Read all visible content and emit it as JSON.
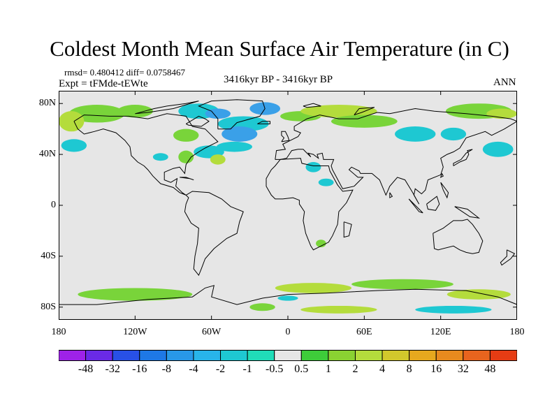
{
  "title": "Coldest Month Mean Surface Air Temperature (in C)",
  "stats": "rmsd= 0.480412 diff= 0.0758467",
  "experiment": "Expt = tFMde-tEWte",
  "period": "3416kyr BP - 3416kyr BP",
  "season": "ANN",
  "map": {
    "projection": "cylindrical-equidistant",
    "lon_range": [
      -180,
      180
    ],
    "lat_range": [
      -90,
      90
    ],
    "land_fill": "#e6e6e6",
    "coast_color": "#000000",
    "lat_ticks": [
      {
        "value": 80,
        "label": "80N"
      },
      {
        "value": 40,
        "label": "40N"
      },
      {
        "value": 0,
        "label": "0"
      },
      {
        "value": -40,
        "label": "40S"
      },
      {
        "value": -80,
        "label": "80S"
      }
    ],
    "lon_ticks": [
      {
        "value": -180,
        "label": "180"
      },
      {
        "value": -120,
        "label": "120W"
      },
      {
        "value": -60,
        "label": "60W"
      },
      {
        "value": 0,
        "label": "0"
      },
      {
        "value": 60,
        "label": "60E"
      },
      {
        "value": 120,
        "label": "120E"
      },
      {
        "value": 180,
        "label": "180"
      }
    ],
    "anomaly_patches": [
      {
        "lon": -150,
        "lat": 72,
        "rx": 22,
        "ry": 7,
        "color": "#79d43a"
      },
      {
        "lon": -170,
        "lat": 66,
        "rx": 10,
        "ry": 8,
        "color": "#b4dc3c"
      },
      {
        "lon": -120,
        "lat": 74,
        "rx": 14,
        "ry": 5,
        "color": "#79d43a"
      },
      {
        "lon": -70,
        "lat": 74,
        "rx": 16,
        "ry": 6,
        "color": "#1ec8d2"
      },
      {
        "lon": -55,
        "lat": 72,
        "rx": 10,
        "ry": 4,
        "color": "#3aa0e8"
      },
      {
        "lon": -35,
        "lat": 64,
        "rx": 20,
        "ry": 6,
        "color": "#1ec8d2"
      },
      {
        "lon": -38,
        "lat": 56,
        "rx": 14,
        "ry": 6,
        "color": "#3aa0e8"
      },
      {
        "lon": -18,
        "lat": 76,
        "rx": 12,
        "ry": 5,
        "color": "#3aa0e8"
      },
      {
        "lon": -42,
        "lat": 46,
        "rx": 14,
        "ry": 4,
        "color": "#1ec8d2"
      },
      {
        "lon": -62,
        "lat": 42,
        "rx": 12,
        "ry": 5,
        "color": "#1ec8d2"
      },
      {
        "lon": -80,
        "lat": 38,
        "rx": 6,
        "ry": 5,
        "color": "#79d43a"
      },
      {
        "lon": -55,
        "lat": 36,
        "rx": 6,
        "ry": 4,
        "color": "#b4dc3c"
      },
      {
        "lon": -100,
        "lat": 38,
        "rx": 6,
        "ry": 3,
        "color": "#1ec8d2"
      },
      {
        "lon": 10,
        "lat": 70,
        "rx": 16,
        "ry": 4,
        "color": "#79d43a"
      },
      {
        "lon": 40,
        "lat": 74,
        "rx": 30,
        "ry": 5,
        "color": "#b4dc3c"
      },
      {
        "lon": 60,
        "lat": 66,
        "rx": 26,
        "ry": 5,
        "color": "#79d43a"
      },
      {
        "lon": 100,
        "lat": 56,
        "rx": 16,
        "ry": 6,
        "color": "#1ec8d2"
      },
      {
        "lon": 130,
        "lat": 56,
        "rx": 10,
        "ry": 5,
        "color": "#1ec8d2"
      },
      {
        "lon": 150,
        "lat": 74,
        "rx": 26,
        "ry": 6,
        "color": "#79d43a"
      },
      {
        "lon": 168,
        "lat": 72,
        "rx": 12,
        "ry": 4,
        "color": "#b4dc3c"
      },
      {
        "lon": 20,
        "lat": 30,
        "rx": 6,
        "ry": 4,
        "color": "#1ec8d2"
      },
      {
        "lon": 30,
        "lat": 18,
        "rx": 6,
        "ry": 3,
        "color": "#1ec8d2"
      },
      {
        "lon": 165,
        "lat": 44,
        "rx": 12,
        "ry": 6,
        "color": "#1ec8d2"
      },
      {
        "lon": -168,
        "lat": 47,
        "rx": 10,
        "ry": 5,
        "color": "#1ec8d2"
      },
      {
        "lon": -80,
        "lat": 55,
        "rx": 10,
        "ry": 5,
        "color": "#79d43a"
      },
      {
        "lon": 26,
        "lat": -30,
        "rx": 4,
        "ry": 3,
        "color": "#79d43a"
      },
      {
        "lon": 90,
        "lat": -62,
        "rx": 40,
        "ry": 4,
        "color": "#79d43a"
      },
      {
        "lon": -120,
        "lat": -70,
        "rx": 45,
        "ry": 5,
        "color": "#79d43a"
      },
      {
        "lon": 20,
        "lat": -65,
        "rx": 30,
        "ry": 4,
        "color": "#b4dc3c"
      },
      {
        "lon": 150,
        "lat": -70,
        "rx": 25,
        "ry": 4,
        "color": "#b4dc3c"
      },
      {
        "lon": -20,
        "lat": -80,
        "rx": 10,
        "ry": 3,
        "color": "#79d43a"
      },
      {
        "lon": 40,
        "lat": -82,
        "rx": 30,
        "ry": 3,
        "color": "#b4dc3c"
      },
      {
        "lon": 0,
        "lat": -73,
        "rx": 8,
        "ry": 2,
        "color": "#1ec8d2"
      },
      {
        "lon": 130,
        "lat": -82,
        "rx": 30,
        "ry": 3,
        "color": "#1ec8d2"
      }
    ]
  },
  "colorbar": {
    "colors": [
      "#9e22e8",
      "#6a2ae6",
      "#2850e6",
      "#1e78e6",
      "#2898e8",
      "#28b4ea",
      "#1ec8d2",
      "#20dcb8",
      "#e6e6e6",
      "#3ecc3a",
      "#8ad232",
      "#b4dc3c",
      "#d2c82c",
      "#e6a81e",
      "#e88a1e",
      "#e8641e",
      "#e63c14"
    ],
    "labels": [
      "-48",
      "-32",
      "-16",
      "-8",
      "-4",
      "-2",
      "-1",
      "-0.5",
      "0.5",
      "1",
      "2",
      "4",
      "8",
      "16",
      "32",
      "48"
    ]
  }
}
